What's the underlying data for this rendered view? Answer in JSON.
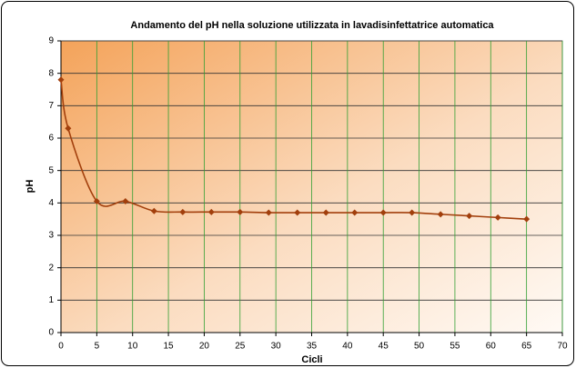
{
  "chart_data": {
    "type": "line",
    "title": "Andamento del pH nella soluzione utilizzata in lavadisinfettatrice automatica",
    "x_label": "Cicli",
    "y_label": "pH",
    "x": [
      0,
      1,
      5,
      9,
      13,
      17,
      21,
      25,
      29,
      33,
      37,
      41,
      45,
      49,
      53,
      57,
      61,
      65
    ],
    "series": [
      {
        "name": "pH",
        "color": "#a23f0c",
        "values": [
          7.8,
          6.3,
          4.05,
          4.05,
          3.75,
          3.72,
          3.72,
          3.72,
          3.7,
          3.7,
          3.7,
          3.7,
          3.7,
          3.7,
          3.65,
          3.6,
          3.55,
          3.5
        ]
      }
    ],
    "xlim": [
      0,
      70
    ],
    "xticks": [
      0,
      5,
      10,
      15,
      20,
      25,
      30,
      35,
      40,
      45,
      50,
      55,
      60,
      65,
      70
    ],
    "ylim": [
      0,
      9
    ],
    "yticks": [
      0,
      1,
      2,
      3,
      4,
      5,
      6,
      7,
      8,
      9
    ],
    "grid": true,
    "smooth": true,
    "x_grid_color": "#33a033",
    "y_grid_color": "#333333"
  }
}
